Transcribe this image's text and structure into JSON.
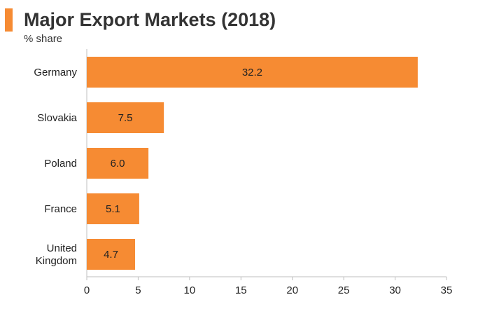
{
  "colors": {
    "bar": "#F68B33",
    "axis": "#BFBFBF",
    "accent": "#F68B33"
  },
  "chart_data": {
    "type": "bar",
    "orientation": "horizontal",
    "title": "Major Export Markets (2018)",
    "subtitle": "% share",
    "categories": [
      "Germany",
      "Slovakia",
      "Poland",
      "France",
      "United Kingdom"
    ],
    "values": [
      32.2,
      7.5,
      6.0,
      5.1,
      4.7
    ],
    "data_labels": [
      "32.2",
      "7.5",
      "6.0",
      "5.1",
      "4.7"
    ],
    "xlim": [
      0,
      35
    ],
    "xticks": [
      0,
      5,
      10,
      15,
      20,
      25,
      30,
      35
    ],
    "grid": false,
    "legend": "none"
  }
}
